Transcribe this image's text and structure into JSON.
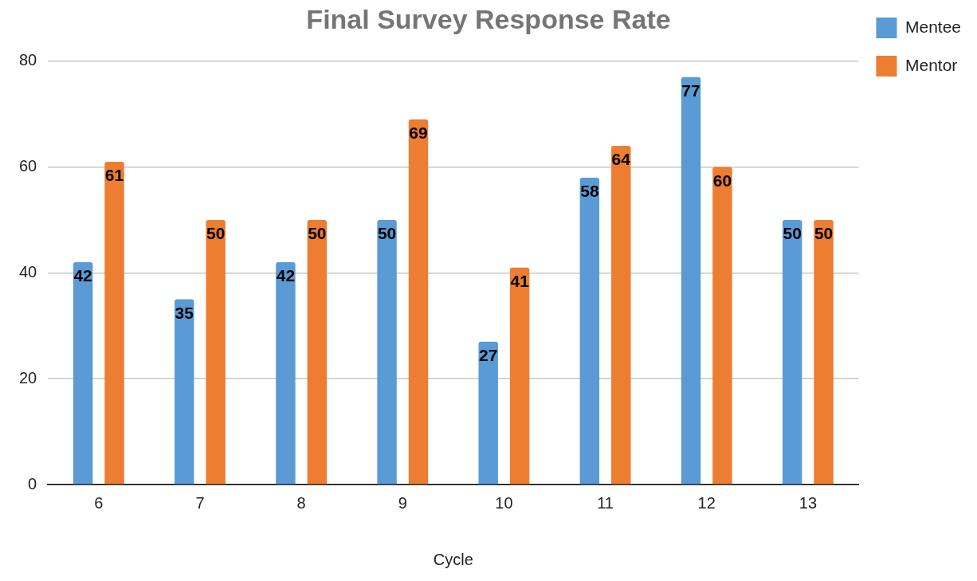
{
  "chart_data": {
    "type": "bar",
    "title": "Final Survey Response Rate",
    "xlabel": "Cycle",
    "categories": [
      "6",
      "7",
      "8",
      "9",
      "10",
      "11",
      "12",
      "13"
    ],
    "series": [
      {
        "name": "Mentee",
        "color": "#5b9bd5",
        "values": [
          42,
          35,
          42,
          50,
          27,
          58,
          77,
          50
        ]
      },
      {
        "name": "Mentor",
        "color": "#ed7d31",
        "values": [
          61,
          50,
          50,
          69,
          41,
          64,
          60,
          50
        ]
      }
    ],
    "ylim": [
      0,
      80
    ],
    "yticks": [
      0,
      20,
      40,
      60,
      80
    ],
    "grid": "y",
    "legend": "right",
    "data_labels": true
  }
}
